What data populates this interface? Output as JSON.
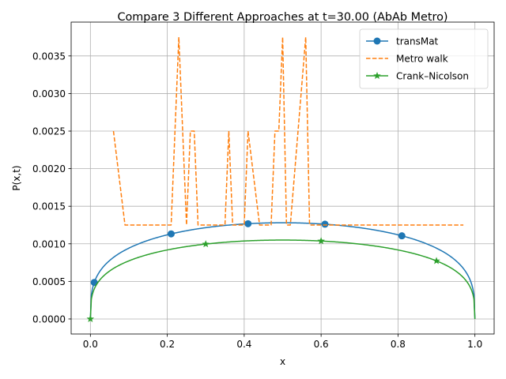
{
  "chart_data": {
    "type": "line",
    "title": "Compare 3 Different Approaches at t=30.00 (AbAb Metro)",
    "xlabel": "x",
    "ylabel": "P(x,t)",
    "xlim": [
      -0.05,
      1.05
    ],
    "ylim": [
      -0.0002,
      0.00395
    ],
    "xticks": [
      0.0,
      0.2,
      0.4,
      0.6,
      0.8,
      1.0
    ],
    "xtick_labels": [
      "0.0",
      "0.2",
      "0.4",
      "0.6",
      "0.8",
      "1.0"
    ],
    "yticks": [
      0.0,
      0.0005,
      0.001,
      0.0015,
      0.002,
      0.0025,
      0.003,
      0.0035
    ],
    "ytick_labels": [
      "0.0000",
      "0.0005",
      "0.0010",
      "0.0015",
      "0.0020",
      "0.0025",
      "0.0030",
      "0.0035"
    ],
    "grid": true,
    "legend_position": "top-right",
    "series": [
      {
        "name": "transMat",
        "color": "#1f77b4",
        "style": "solid",
        "marker": "circle",
        "curve": {
          "amplitude": 0.00128,
          "exponent": 0.3,
          "x_start": 0.0,
          "x_end": 1.0
        },
        "marker_x": [
          0.01,
          0.21,
          0.41,
          0.61,
          0.81
        ]
      },
      {
        "name": "Metro walk",
        "color": "#ff7f0e",
        "style": "dashed",
        "marker": "none",
        "x": [
          0.06,
          0.09,
          0.21,
          0.23,
          0.25,
          0.26,
          0.27,
          0.28,
          0.35,
          0.36,
          0.37,
          0.4,
          0.41,
          0.44,
          0.47,
          0.48,
          0.49,
          0.5,
          0.51,
          0.52,
          0.56,
          0.57,
          0.97
        ],
        "y": [
          0.0025,
          0.00125,
          0.00125,
          0.00375,
          0.00125,
          0.0025,
          0.0025,
          0.00125,
          0.00125,
          0.0025,
          0.00125,
          0.00125,
          0.0025,
          0.00125,
          0.00125,
          0.0025,
          0.0025,
          0.00375,
          0.00125,
          0.00125,
          0.00375,
          0.00125,
          0.00125
        ]
      },
      {
        "name": "Crank–Nicolson",
        "color": "#2ca02c",
        "style": "solid",
        "marker": "star",
        "curve": {
          "amplitude": 0.00105,
          "exponent": 0.3,
          "x_start": 0.0,
          "x_end": 1.0
        },
        "marker_x": [
          0.0,
          0.3,
          0.6,
          0.9
        ]
      }
    ]
  }
}
